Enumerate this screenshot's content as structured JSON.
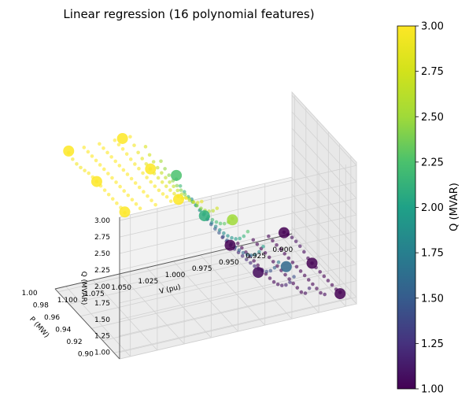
{
  "chart_data": {
    "type": "scatter3d",
    "title": "Linear regression (16 polynomial features)",
    "xlabel": "V (pu)",
    "ylabel": "P (MW)",
    "zlabel": "Q (MVAR)",
    "xlim": [
      0.89,
      1.11
    ],
    "ylim": [
      0.89,
      1.005
    ],
    "zlim": [
      0.9,
      3.05
    ],
    "x_ticks": [
      "0.900",
      "0.925",
      "0.950",
      "0.975",
      "1.000",
      "1.025",
      "1.050",
      "1.075",
      "1.100"
    ],
    "y_ticks": [
      "0.90",
      "0.92",
      "0.94",
      "0.96",
      "0.98",
      "1.00"
    ],
    "z_ticks": [
      "1.00",
      "1.25",
      "1.50",
      "1.75",
      "2.00",
      "2.25",
      "2.50",
      "2.75",
      "3.00"
    ],
    "colorbar": {
      "label": "Q (MVAR)",
      "colormap": "viridis",
      "range": [
        1.0,
        3.0
      ],
      "ticks": [
        "1.00",
        "1.25",
        "1.50",
        "1.75",
        "2.00",
        "2.25",
        "2.50",
        "2.75",
        "3.00"
      ]
    },
    "grid": true,
    "series": [
      {
        "kind": "samples",
        "points": [
          {
            "v": 1.1,
            "p": 0.9,
            "q": 3.0
          },
          {
            "v": 1.1,
            "p": 0.95,
            "q": 3.0
          },
          {
            "v": 1.1,
            "p": 1.0,
            "q": 3.0
          },
          {
            "v": 1.05,
            "p": 0.9,
            "q": 3.0
          },
          {
            "v": 1.05,
            "p": 0.95,
            "q": 3.0
          },
          {
            "v": 1.05,
            "p": 1.0,
            "q": 3.0
          },
          {
            "v": 1.0,
            "p": 0.9,
            "q": 2.5
          },
          {
            "v": 1.0,
            "p": 0.95,
            "q": 2.1
          },
          {
            "v": 1.0,
            "p": 1.0,
            "q": 2.25
          },
          {
            "v": 0.95,
            "p": 0.9,
            "q": 1.6
          },
          {
            "v": 0.95,
            "p": 0.95,
            "q": 1.05
          },
          {
            "v": 0.95,
            "p": 1.0,
            "q": 1.0
          },
          {
            "v": 0.9,
            "p": 0.9,
            "q": 1.0
          },
          {
            "v": 0.9,
            "p": 0.95,
            "q": 1.0
          },
          {
            "v": 0.9,
            "p": 1.0,
            "q": 1.0
          }
        ]
      },
      {
        "kind": "prediction-surface",
        "model": "degree-4 polynomial regression on (V, P)",
        "v_range": [
          0.9,
          1.1
        ],
        "p_range": [
          0.9,
          1.0
        ],
        "grid_size": 15,
        "clip": [
          1.0,
          3.0
        ]
      }
    ]
  }
}
